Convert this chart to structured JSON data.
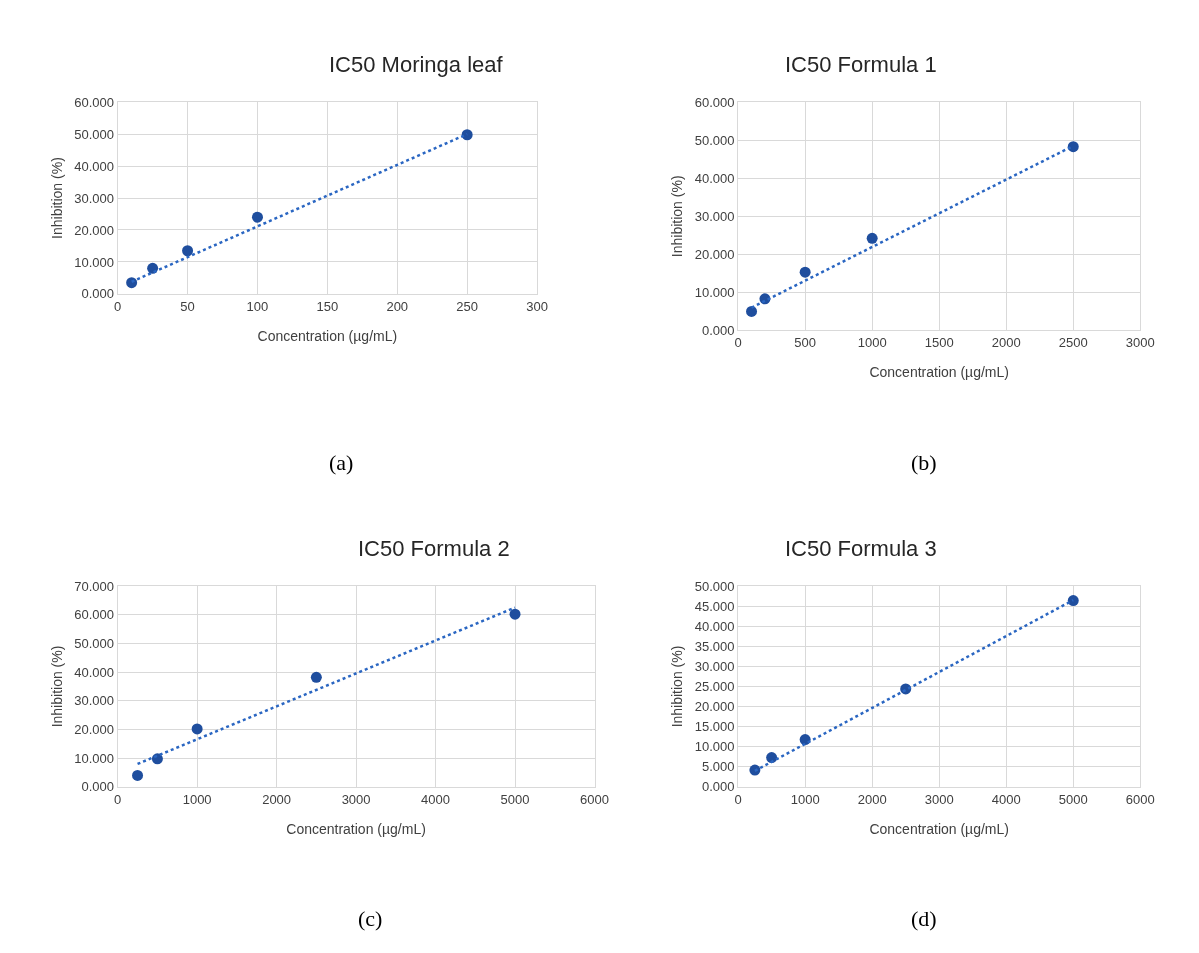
{
  "chart_data": [
    {
      "type": "scatter",
      "title": "IC50 Moringa leaf",
      "xlabel": "Concentration (µg/mL)",
      "ylabel": "Inhibition (%)",
      "annotations": [
        "(a)"
      ],
      "grid": true,
      "xlim": [
        0,
        300
      ],
      "xticks": [
        0,
        50,
        100,
        150,
        200,
        250,
        300
      ],
      "ylim": [
        0,
        60
      ],
      "yticks": [
        {
          "value": 0,
          "label": "0.000"
        },
        {
          "value": 10,
          "label": "10.000"
        },
        {
          "value": 20,
          "label": "20.000"
        },
        {
          "value": 30,
          "label": "30.000"
        },
        {
          "value": 40,
          "label": "40.000"
        },
        {
          "value": 50,
          "label": "50.000"
        },
        {
          "value": 60,
          "label": "60.000"
        }
      ],
      "series": [
        {
          "marker": "circle",
          "color": "#1f4e9e",
          "x": [
            10,
            25,
            50,
            100,
            250
          ],
          "values": [
            3.5,
            8,
            13.5,
            24,
            49.8
          ]
        },
        {
          "type": "line",
          "color": "#2a66c2",
          "line_style": "dotted",
          "x": [
            10,
            250
          ],
          "values": [
            3.8,
            50
          ]
        }
      ]
    },
    {
      "type": "scatter",
      "title": "IC50 Formula 1",
      "xlabel": "Concentration (µg/mL)",
      "ylabel": "Inhibition (%)",
      "annotations": [
        "(b)"
      ],
      "grid": true,
      "xlim": [
        0,
        3000
      ],
      "xticks": [
        0,
        500,
        1000,
        1500,
        2000,
        2500,
        3000
      ],
      "ylim": [
        0,
        60
      ],
      "yticks": [
        {
          "value": 0,
          "label": "0.000"
        },
        {
          "value": 10,
          "label": "10.000"
        },
        {
          "value": 20,
          "label": "20.000"
        },
        {
          "value": 30,
          "label": "30.000"
        },
        {
          "value": 40,
          "label": "40.000"
        },
        {
          "value": 50,
          "label": "50.000"
        },
        {
          "value": 60,
          "label": "60.000"
        }
      ],
      "series": [
        {
          "marker": "circle",
          "color": "#1f4e9e",
          "x": [
            100,
            200,
            500,
            1000,
            2500
          ],
          "values": [
            5,
            8.3,
            15.3,
            24.2,
            48.3
          ]
        },
        {
          "type": "line",
          "color": "#2a66c2",
          "line_style": "dotted",
          "x": [
            100,
            2500
          ],
          "values": [
            6,
            48.5
          ]
        }
      ]
    },
    {
      "type": "scatter",
      "title": "IC50 Formula 2",
      "xlabel": "Concentration (µg/mL)",
      "ylabel": "Inhibition (%)",
      "annotations": [
        "(c)"
      ],
      "grid": true,
      "xlim": [
        0,
        6000
      ],
      "xticks": [
        0,
        1000,
        2000,
        3000,
        4000,
        5000,
        6000
      ],
      "ylim": [
        0,
        70
      ],
      "yticks": [
        {
          "value": 0,
          "label": "0.000"
        },
        {
          "value": 10,
          "label": "10.000"
        },
        {
          "value": 20,
          "label": "20.000"
        },
        {
          "value": 30,
          "label": "30.000"
        },
        {
          "value": 40,
          "label": "40.000"
        },
        {
          "value": 50,
          "label": "50.000"
        },
        {
          "value": 60,
          "label": "60.000"
        },
        {
          "value": 70,
          "label": "70.000"
        }
      ],
      "series": [
        {
          "marker": "circle",
          "color": "#1f4e9e",
          "x": [
            250,
            500,
            1000,
            2500,
            5000
          ],
          "values": [
            4,
            9.8,
            20.2,
            38.2,
            60.2
          ]
        },
        {
          "type": "line",
          "color": "#2a66c2",
          "line_style": "dotted",
          "x": [
            250,
            5000
          ],
          "values": [
            8,
            62.5
          ]
        }
      ]
    },
    {
      "type": "scatter",
      "title": "IC50 Formula 3",
      "xlabel": "Concentration (µg/mL)",
      "ylabel": "Inhibition (%)",
      "annotations": [
        "(d)"
      ],
      "grid": true,
      "xlim": [
        0,
        6000
      ],
      "xticks": [
        0,
        1000,
        2000,
        3000,
        4000,
        5000,
        6000
      ],
      "ylim": [
        0,
        50
      ],
      "yticks": [
        {
          "value": 0,
          "label": "0.000"
        },
        {
          "value": 5,
          "label": "5.000"
        },
        {
          "value": 10,
          "label": "10.000"
        },
        {
          "value": 15,
          "label": "15.000"
        },
        {
          "value": 20,
          "label": "20.000"
        },
        {
          "value": 25,
          "label": "25.000"
        },
        {
          "value": 30,
          "label": "30.000"
        },
        {
          "value": 35,
          "label": "35.000"
        },
        {
          "value": 40,
          "label": "40.000"
        },
        {
          "value": 45,
          "label": "45.000"
        },
        {
          "value": 50,
          "label": "50.000"
        }
      ],
      "series": [
        {
          "marker": "circle",
          "color": "#1f4e9e",
          "x": [
            250,
            500,
            1000,
            2500,
            5000
          ],
          "values": [
            4.2,
            7.3,
            11.8,
            24.4,
            46.4
          ]
        },
        {
          "type": "line",
          "color": "#2a66c2",
          "line_style": "dotted",
          "x": [
            250,
            5000
          ],
          "values": [
            4,
            46.5
          ]
        }
      ]
    }
  ]
}
